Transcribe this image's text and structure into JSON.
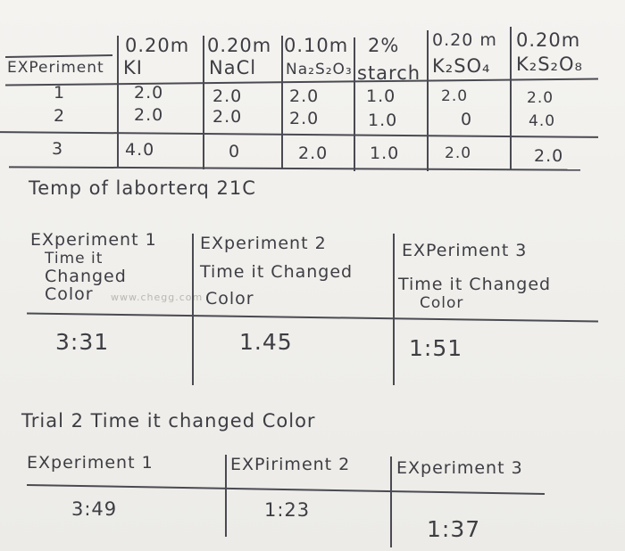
{
  "table1": {
    "concentrations": [
      "0.20m",
      "0.20m",
      "0.10m",
      "2%",
      "0.20 m",
      "0.20m"
    ],
    "corner_label": "EXPeriment",
    "reagents": [
      "KI",
      "NaCl",
      "Na₂S₂O₃",
      "starch",
      "K₂SO₄",
      "K₂S₂O₈"
    ],
    "rows": [
      {
        "exp": "1",
        "values": [
          "2.0",
          "2.0",
          "2.0",
          "1.0",
          "2.0",
          "2.0"
        ]
      },
      {
        "exp": "2",
        "values": [
          "2.0",
          "2.0",
          "2.0",
          "1.0",
          "0",
          "4.0"
        ]
      },
      {
        "exp": "3",
        "values": [
          "4.0",
          "0",
          "2.0",
          "1.0",
          "2.0",
          "2.0"
        ]
      }
    ]
  },
  "temp_note": "Temp of laborterq 21C",
  "trial1": {
    "headers": [
      [
        "EXperiment 1",
        "Time it",
        "Changed",
        "Color"
      ],
      [
        "EXperiment 2",
        "Time it Changed",
        "Color"
      ],
      [
        "EXPeriment 3",
        "Time it Changed",
        "Color"
      ]
    ],
    "values": [
      "3:31",
      "1.45",
      "1:51"
    ]
  },
  "trial2": {
    "title": "Trial 2 Time it changed Color",
    "headers": [
      "EXperiment 1",
      "EXPiriment 2",
      "EXperiment 3"
    ],
    "values": [
      "3:49",
      "1:23",
      "1:37"
    ]
  }
}
